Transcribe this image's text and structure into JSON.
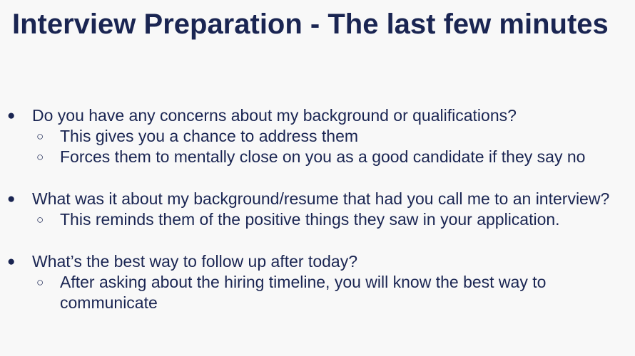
{
  "slide": {
    "title": "Interview Preparation - The last few minutes",
    "bullets": [
      {
        "text": "Do you have any concerns about my background or qualifications?",
        "subs": [
          "This gives you a chance to address them",
          "Forces them to mentally close on you as a good candidate if they say no"
        ]
      },
      {
        "text": "What was it about my background/resume that had you call me to an interview?",
        "subs": [
          "This reminds them of the positive things they saw in your application."
        ]
      },
      {
        "text": "What’s the best way to follow up after today?",
        "subs": [
          "After asking about the hiring timeline, you will know the best way to communicate"
        ]
      }
    ],
    "bullet_glyph": "●",
    "sub_bullet_glyph": "○",
    "colors": {
      "text": "#1a2552",
      "background": "#f8f8f8"
    }
  }
}
